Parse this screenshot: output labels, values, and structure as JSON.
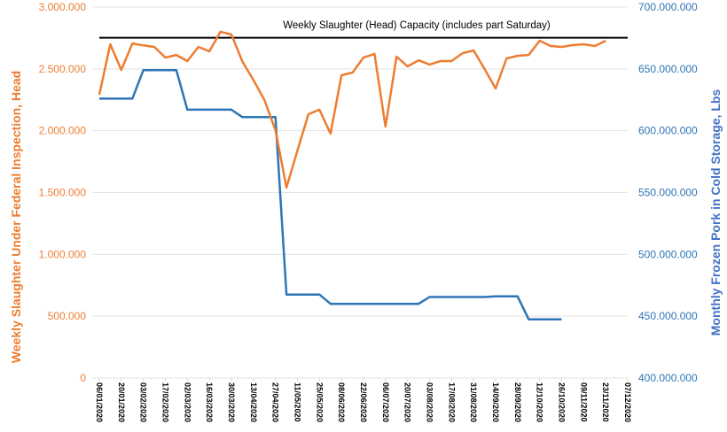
{
  "chart_data": {
    "type": "line",
    "annotation": "Weekly Slaughter (Head) Capacity (includes part Saturday)",
    "capacity_value": 2752000,
    "y_left": {
      "label": "Weekly Slaughter Under Federal Inspection, Head",
      "range": [
        0,
        3000000
      ],
      "ticks": [
        "0",
        "500.000",
        "1.000.000",
        "1.500.000",
        "2.000.000",
        "2.500.000",
        "3.000.000"
      ],
      "color": "#ED7D31"
    },
    "y_right": {
      "label": "Monthly Frozen Pork in Cold Storage, Lbs",
      "range": [
        400000000,
        700000000
      ],
      "ticks": [
        "400.000.000",
        "450.000.000",
        "500.000.000",
        "550.000.000",
        "600.000.000",
        "650.000.000",
        "700.000.000"
      ],
      "color": "#2E75B6"
    },
    "x_range": [
      "06/01/2020",
      "07/12/2020"
    ],
    "x_ticks": [
      "06/01/2020",
      "20/01/2020",
      "03/02/2020",
      "17/02/2020",
      "02/03/2020",
      "16/03/2020",
      "30/03/2020",
      "13/04/2020",
      "27/04/2020",
      "11/05/2020",
      "25/05/2020",
      "08/06/2020",
      "22/06/2020",
      "06/07/2020",
      "20/07/2020",
      "03/08/2020",
      "17/08/2020",
      "31/08/2020",
      "14/09/2020",
      "28/09/2020",
      "12/10/2020",
      "26/10/2020",
      "09/11/2020",
      "23/11/2020",
      "07/12/2020"
    ],
    "grid": true,
    "capacity_color": "#000000",
    "series": [
      {
        "axis": "left",
        "color": "#ED7D31",
        "start": "06/01/2020",
        "interval_days": 7,
        "values": [
          2291000,
          2699000,
          2492000,
          2706000,
          2690000,
          2678000,
          2592000,
          2613000,
          2563000,
          2678000,
          2642000,
          2800000,
          2778000,
          2560000,
          2410000,
          2248000,
          2005000,
          1540000,
          1840000,
          2134000,
          2170000,
          1976000,
          2449000,
          2470000,
          2592000,
          2621000,
          2034000,
          2599000,
          2520000,
          2570000,
          2535000,
          2563000,
          2563000,
          2628000,
          2649000,
          2499000,
          2341000,
          2585000,
          2606000,
          2613000,
          2728000,
          2685000,
          2678000,
          2692000,
          2699000,
          2685000,
          2728000
        ]
      },
      {
        "axis": "right",
        "color": "#2E75B6",
        "start": "06/01/2020",
        "interval_days": 7,
        "values": [
          626000000,
          626000000,
          626000000,
          626000000,
          649000000,
          649000000,
          649000000,
          649000000,
          617000000,
          617000000,
          617000000,
          617000000,
          617000000,
          611000000,
          611000000,
          611000000,
          611000000,
          467500000,
          467500000,
          467500000,
          467500000,
          460000000,
          460000000,
          460000000,
          460000000,
          460000000,
          460000000,
          460000000,
          460000000,
          460000000,
          465500000,
          465500000,
          465500000,
          465500000,
          465500000,
          465500000,
          466000000,
          466000000,
          466000000,
          447500000,
          447500000,
          447500000,
          447500000
        ]
      }
    ]
  }
}
